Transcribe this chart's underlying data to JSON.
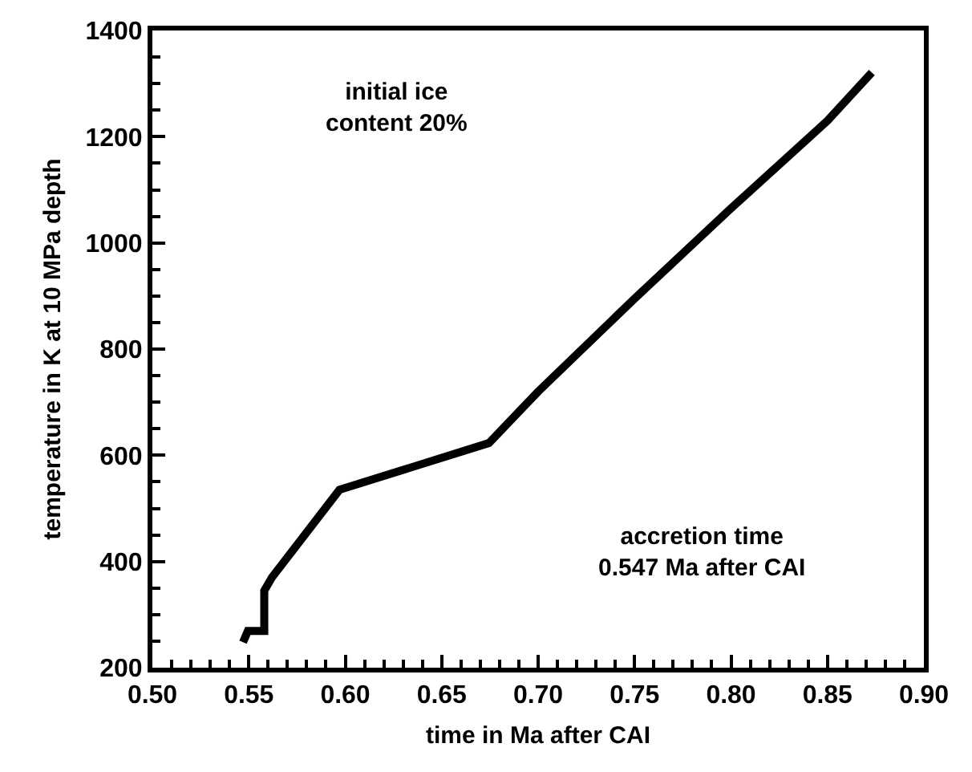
{
  "chart_data": {
    "type": "line",
    "xlabel": "time in Ma after CAI",
    "ylabel": "temperature in K at 10 MPa depth",
    "x": [
      0.547,
      0.5495,
      0.558,
      0.558,
      0.562,
      0.597,
      0.6745,
      0.7,
      0.75,
      0.8,
      0.85,
      0.873
    ],
    "series": [
      {
        "color": "#000000",
        "values": [
          248,
          269,
          269,
          345,
          370,
          535,
          623,
          720,
          895,
          1065,
          1230,
          1321
        ]
      }
    ],
    "xlim": [
      0.5,
      0.9
    ],
    "xticks": [
      {
        "value": 0.5,
        "label": "0.50"
      },
      {
        "value": 0.55,
        "label": "0.55"
      },
      {
        "value": 0.6,
        "label": "0.60"
      },
      {
        "value": 0.65,
        "label": "0.65"
      },
      {
        "value": 0.7,
        "label": "0.70"
      },
      {
        "value": 0.75,
        "label": "0.75"
      },
      {
        "value": 0.8,
        "label": "0.80"
      },
      {
        "value": 0.85,
        "label": "0.85"
      },
      {
        "value": 0.9,
        "label": "0.90"
      }
    ],
    "ylim": [
      200,
      1400
    ],
    "yticks": [
      200,
      400,
      600,
      800,
      1000,
      1200,
      1400
    ],
    "annotations": [
      "initial ice\ncontent 20%",
      "accretion time\n0.547 Ma after CAI"
    ],
    "marker": "none",
    "line_style": "solid"
  }
}
